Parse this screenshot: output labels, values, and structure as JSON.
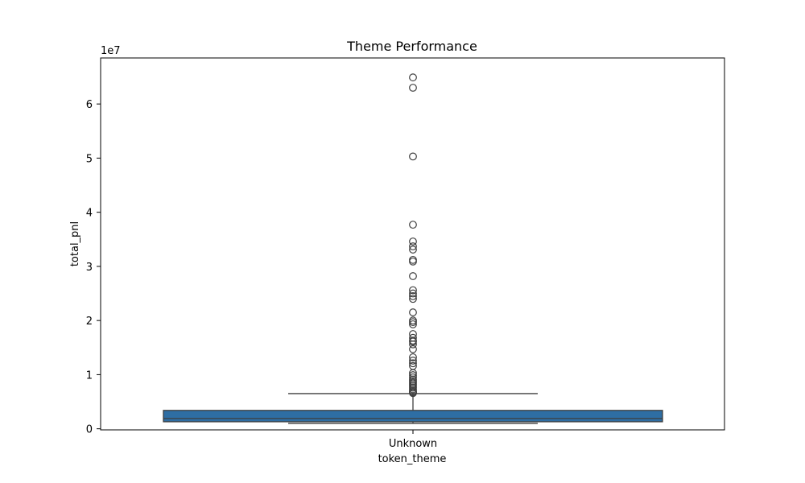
{
  "chart_data": {
    "type": "box",
    "title": "Theme Performance",
    "xlabel": "token_theme",
    "ylabel": "total_pnl",
    "y_scale_label": "1e7",
    "y_tick_values": [
      0,
      1,
      2,
      3,
      4,
      5,
      6
    ],
    "y_tick_labels": [
      "0",
      "1",
      "2",
      "3",
      "4",
      "5",
      "6"
    ],
    "ylim": [
      -200000,
      68500000
    ],
    "grid": false,
    "categories": [
      "Unknown"
    ],
    "box": {
      "category": "Unknown",
      "whisker_low": 1000000,
      "q1": 1300000,
      "median": 1900000,
      "q3": 3400000,
      "whisker_high": 6500000,
      "color": "#2e6ea4"
    },
    "outliers": [
      64900000,
      63000000,
      50300000,
      37700000,
      34600000,
      33700000,
      33100000,
      31200000,
      30900000,
      28200000,
      25600000,
      25000000,
      24500000,
      24000000,
      21500000,
      20000000,
      19700000,
      19300000,
      17500000,
      16800000,
      16300000,
      16100000,
      15600000,
      14700000,
      13200000,
      12600000,
      12100000,
      11600000,
      10300000,
      9900000,
      9500000,
      9100000,
      8800000,
      8500000,
      8200000,
      7900000,
      7600000,
      7300000,
      7000000,
      6800000,
      6700000,
      6600000
    ]
  }
}
